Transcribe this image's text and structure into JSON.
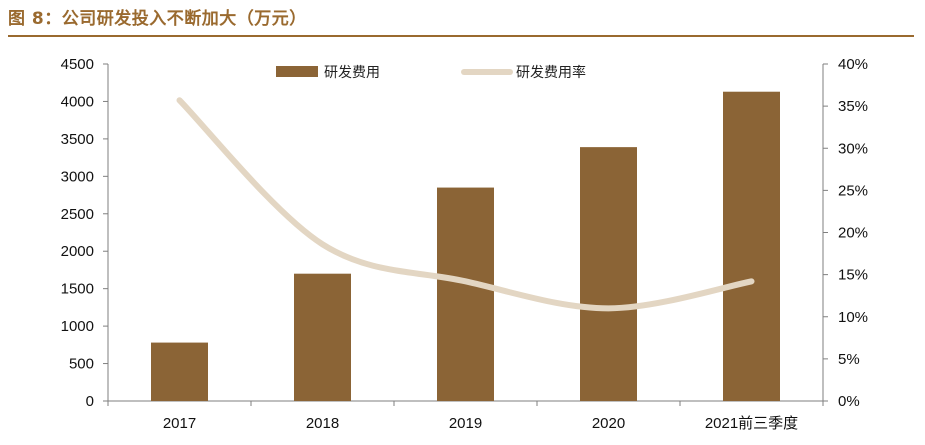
{
  "caption": "图 8：公司研发投入不断加大（万元）",
  "chart_data": {
    "type": "bar",
    "categories": [
      "2017",
      "2018",
      "2019",
      "2020",
      "2021前三季度"
    ],
    "series": [
      {
        "name": "研发费用",
        "type": "bar",
        "axis": "left",
        "color": "#8b6436",
        "values": [
          780,
          1700,
          2850,
          3390,
          4130
        ]
      },
      {
        "name": "研发费用率",
        "type": "line",
        "axis": "right",
        "color": "#e3d6c3",
        "values": [
          0.357,
          0.186,
          0.142,
          0.11,
          0.142
        ]
      }
    ],
    "y_left": {
      "min": 0,
      "max": 4500,
      "ticks": [
        "0",
        "500",
        "1000",
        "1500",
        "2000",
        "2500",
        "3000",
        "3500",
        "4000",
        "4500"
      ]
    },
    "y_right": {
      "min": 0,
      "max": 0.4,
      "ticks": [
        "0%",
        "5%",
        "10%",
        "15%",
        "20%",
        "25%",
        "30%",
        "35%",
        "40%"
      ]
    },
    "legend_position": "top-center",
    "grid": false
  }
}
